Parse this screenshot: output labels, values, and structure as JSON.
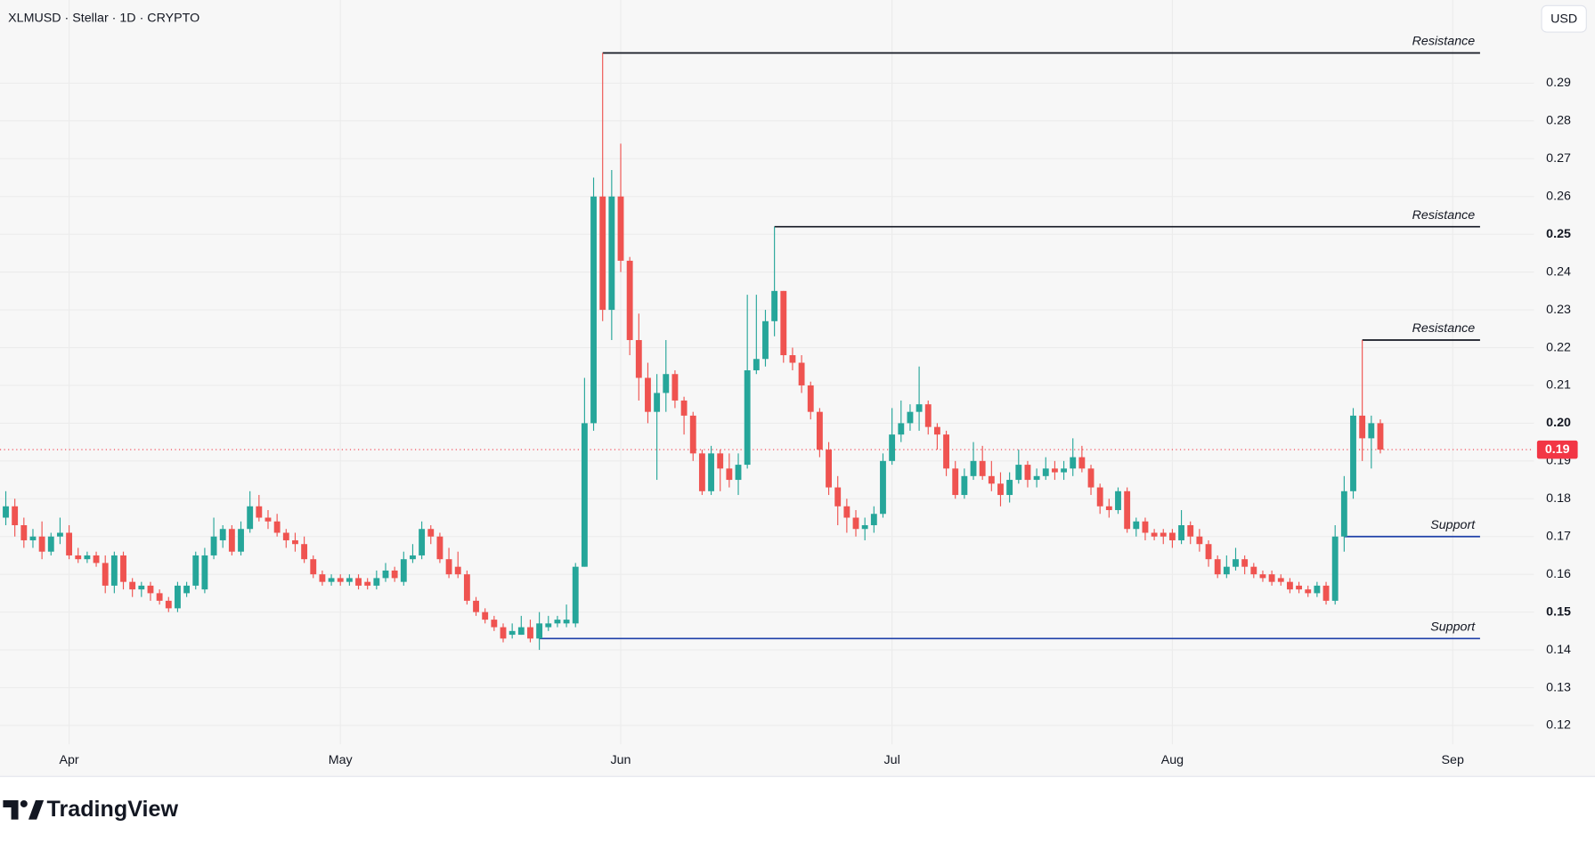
{
  "header": {
    "title": "XLMUSD · Stellar · 1D · CRYPTO",
    "currency": "USD"
  },
  "footer": {
    "brand": "TradingView"
  },
  "chart_data": {
    "type": "candlestick",
    "up_color": "#26a69a",
    "down_color": "#ef5350",
    "categories": [
      null,
      null,
      null,
      null,
      null,
      null,
      null,
      "Apr",
      null,
      null,
      null,
      null,
      null,
      null,
      null,
      null,
      null,
      null,
      null,
      null,
      null,
      null,
      null,
      null,
      null,
      null,
      null,
      null,
      null,
      null,
      null,
      null,
      null,
      null,
      null,
      null,
      null,
      "May",
      null,
      null,
      null,
      null,
      null,
      null,
      null,
      null,
      null,
      null,
      null,
      null,
      null,
      null,
      null,
      null,
      null,
      null,
      null,
      null,
      null,
      null,
      null,
      null,
      null,
      null,
      null,
      null,
      null,
      null,
      "Jun",
      null,
      null,
      null,
      null,
      null,
      null,
      null,
      null,
      null,
      null,
      null,
      null,
      null,
      null,
      null,
      null,
      null,
      null,
      null,
      null,
      null,
      null,
      null,
      null,
      null,
      null,
      null,
      null,
      null,
      "Jul",
      null,
      null,
      null,
      null,
      null,
      null,
      null,
      null,
      null,
      null,
      null,
      null,
      null,
      null,
      null,
      null,
      null,
      null,
      null,
      null,
      null,
      null,
      null,
      null,
      null,
      null,
      null,
      null,
      null,
      null,
      "Aug",
      null,
      null,
      null,
      null,
      null,
      null,
      null,
      null,
      null,
      null,
      null,
      null,
      null,
      null,
      null,
      null,
      null,
      null,
      null,
      null,
      null,
      null,
      null,
      null,
      null,
      null,
      null,
      null,
      null,
      null,
      "Sep"
    ],
    "open": [
      0.175,
      0.178,
      0.173,
      0.169,
      0.17,
      0.166,
      0.17,
      0.171,
      0.165,
      0.164,
      0.165,
      0.163,
      0.157,
      0.165,
      0.158,
      0.156,
      0.157,
      0.155,
      0.153,
      0.151,
      0.155,
      0.157,
      0.156,
      0.165,
      0.169,
      0.172,
      0.166,
      0.172,
      0.178,
      0.175,
      0.174,
      0.171,
      0.169,
      0.168,
      0.164,
      0.16,
      0.158,
      0.159,
      0.158,
      0.159,
      0.158,
      0.157,
      0.159,
      0.161,
      0.158,
      0.164,
      0.165,
      0.172,
      0.17,
      0.164,
      0.162,
      0.16,
      0.153,
      0.15,
      0.148,
      0.146,
      0.144,
      0.144,
      0.146,
      0.143,
      0.146,
      0.147,
      0.147,
      0.147,
      0.162,
      0.2,
      0.26,
      0.23,
      0.26,
      0.243,
      0.222,
      0.212,
      0.203,
      0.208,
      0.213,
      0.206,
      0.202,
      0.192,
      0.182,
      0.192,
      0.188,
      0.185,
      0.189,
      0.214,
      0.217,
      0.227,
      0.235,
      0.218,
      0.216,
      0.21,
      0.203,
      0.193,
      0.183,
      0.178,
      0.175,
      0.172,
      0.173,
      0.176,
      0.19,
      0.197,
      0.2,
      0.203,
      0.205,
      0.199,
      0.197,
      0.188,
      0.181,
      0.186,
      0.19,
      0.186,
      0.184,
      0.181,
      0.185,
      0.189,
      0.185,
      0.186,
      0.188,
      0.187,
      0.188,
      0.191,
      0.188,
      0.183,
      0.178,
      0.177,
      0.182,
      0.172,
      0.174,
      0.171,
      0.171,
      0.171,
      0.169,
      0.173,
      0.17,
      0.168,
      0.164,
      0.16,
      0.162,
      0.164,
      0.162,
      0.16,
      0.16,
      0.159,
      0.158,
      0.157,
      0.156,
      0.155,
      0.157,
      0.153,
      0.17,
      0.182,
      0.202,
      0.196,
      0.2,
      null,
      null,
      null,
      null,
      null,
      null,
      null,
      null
    ],
    "high": [
      0.182,
      0.18,
      0.175,
      0.172,
      0.174,
      0.171,
      0.175,
      0.173,
      0.167,
      0.166,
      0.166,
      0.165,
      0.166,
      0.166,
      0.159,
      0.158,
      0.158,
      0.156,
      0.154,
      0.158,
      0.158,
      0.166,
      0.167,
      0.175,
      0.173,
      0.173,
      0.174,
      0.182,
      0.181,
      0.177,
      0.176,
      0.172,
      0.171,
      0.17,
      0.165,
      0.161,
      0.16,
      0.16,
      0.16,
      0.16,
      0.159,
      0.161,
      0.163,
      0.162,
      0.166,
      0.168,
      0.174,
      0.173,
      0.171,
      0.167,
      0.166,
      0.161,
      0.154,
      0.151,
      0.149,
      0.147,
      0.147,
      0.149,
      0.148,
      0.15,
      0.149,
      0.149,
      0.152,
      0.163,
      0.212,
      0.265,
      0.298,
      0.267,
      0.274,
      0.244,
      0.229,
      0.216,
      0.213,
      0.222,
      0.214,
      0.207,
      0.203,
      0.193,
      0.194,
      0.193,
      0.192,
      0.192,
      0.234,
      0.234,
      0.23,
      0.252,
      0.235,
      0.22,
      0.218,
      0.211,
      0.204,
      0.195,
      0.186,
      0.18,
      0.177,
      0.175,
      0.178,
      0.192,
      0.204,
      0.206,
      0.205,
      0.215,
      0.206,
      0.2,
      0.198,
      0.19,
      0.188,
      0.195,
      0.194,
      0.19,
      0.187,
      0.187,
      0.193,
      0.19,
      0.188,
      0.191,
      0.19,
      0.19,
      0.196,
      0.194,
      0.189,
      0.184,
      0.18,
      0.183,
      0.183,
      0.175,
      0.175,
      0.172,
      0.172,
      0.172,
      0.177,
      0.174,
      0.172,
      0.169,
      0.165,
      0.165,
      0.167,
      0.165,
      0.163,
      0.161,
      0.161,
      0.16,
      0.159,
      0.158,
      0.157,
      0.158,
      0.158,
      0.173,
      0.186,
      0.204,
      0.222,
      0.202,
      0.201,
      null,
      null,
      null,
      null,
      null,
      null,
      null,
      null
    ],
    "low": [
      0.173,
      0.17,
      0.167,
      0.167,
      0.164,
      0.165,
      0.168,
      0.164,
      0.163,
      0.163,
      0.162,
      0.155,
      0.155,
      0.156,
      0.154,
      0.154,
      0.153,
      0.152,
      0.15,
      0.15,
      0.154,
      0.156,
      0.155,
      0.164,
      0.167,
      0.165,
      0.165,
      0.171,
      0.174,
      0.172,
      0.17,
      0.167,
      0.166,
      0.163,
      0.159,
      0.157,
      0.157,
      0.157,
      0.157,
      0.156,
      0.156,
      0.156,
      0.158,
      0.158,
      0.157,
      0.163,
      0.164,
      0.168,
      0.163,
      0.159,
      0.159,
      0.152,
      0.149,
      0.147,
      0.145,
      0.142,
      0.143,
      0.144,
      0.142,
      0.14,
      0.145,
      0.146,
      0.146,
      0.146,
      0.162,
      0.198,
      0.227,
      0.222,
      0.24,
      0.218,
      0.206,
      0.2,
      0.185,
      0.203,
      0.204,
      0.197,
      0.19,
      0.181,
      0.181,
      0.182,
      0.183,
      0.181,
      0.188,
      0.213,
      0.215,
      0.223,
      0.216,
      0.214,
      0.208,
      0.201,
      0.191,
      0.181,
      0.173,
      0.171,
      0.17,
      0.169,
      0.171,
      0.175,
      0.189,
      0.195,
      0.198,
      0.198,
      0.197,
      0.193,
      0.186,
      0.18,
      0.18,
      0.185,
      0.185,
      0.182,
      0.178,
      0.179,
      0.184,
      0.183,
      0.183,
      0.185,
      0.185,
      0.185,
      0.186,
      0.187,
      0.181,
      0.176,
      0.175,
      0.176,
      0.171,
      0.17,
      0.169,
      0.169,
      0.168,
      0.167,
      0.168,
      0.168,
      0.166,
      0.162,
      0.159,
      0.159,
      0.161,
      0.16,
      0.159,
      0.158,
      0.157,
      0.157,
      0.155,
      0.155,
      0.154,
      0.154,
      0.152,
      0.152,
      0.166,
      0.18,
      0.19,
      0.188,
      0.192,
      null,
      null,
      null,
      null,
      null,
      null,
      null,
      null
    ],
    "close": [
      0.178,
      0.173,
      0.169,
      0.17,
      0.166,
      0.17,
      0.171,
      0.165,
      0.164,
      0.165,
      0.163,
      0.157,
      0.165,
      0.158,
      0.156,
      0.157,
      0.155,
      0.153,
      0.151,
      0.157,
      0.157,
      0.165,
      0.165,
      0.17,
      0.172,
      0.166,
      0.172,
      0.178,
      0.175,
      0.174,
      0.171,
      0.169,
      0.168,
      0.164,
      0.16,
      0.158,
      0.159,
      0.158,
      0.159,
      0.157,
      0.157,
      0.159,
      0.161,
      0.159,
      0.164,
      0.165,
      0.172,
      0.17,
      0.164,
      0.16,
      0.16,
      0.153,
      0.15,
      0.148,
      0.146,
      0.143,
      0.145,
      0.146,
      0.143,
      0.147,
      0.147,
      0.148,
      0.148,
      0.162,
      0.2,
      0.26,
      0.23,
      0.26,
      0.243,
      0.222,
      0.212,
      0.203,
      0.208,
      0.213,
      0.206,
      0.202,
      0.192,
      0.182,
      0.192,
      0.188,
      0.185,
      0.189,
      0.214,
      0.217,
      0.227,
      0.235,
      0.218,
      0.216,
      0.21,
      0.203,
      0.193,
      0.183,
      0.178,
      0.175,
      0.172,
      0.173,
      0.176,
      0.19,
      0.197,
      0.2,
      0.203,
      0.205,
      0.199,
      0.197,
      0.188,
      0.181,
      0.186,
      0.19,
      0.186,
      0.184,
      0.181,
      0.185,
      0.189,
      0.185,
      0.186,
      0.188,
      0.187,
      0.188,
      0.191,
      0.188,
      0.183,
      0.178,
      0.177,
      0.182,
      0.172,
      0.174,
      0.171,
      0.17,
      0.17,
      0.169,
      0.173,
      0.17,
      0.168,
      0.164,
      0.16,
      0.162,
      0.164,
      0.162,
      0.16,
      0.159,
      0.158,
      0.158,
      0.156,
      0.156,
      0.155,
      0.157,
      0.153,
      0.17,
      0.182,
      0.202,
      0.196,
      0.2,
      0.193,
      null,
      null,
      null,
      null,
      null,
      null,
      null,
      null
    ],
    "ylim": [
      0.115,
      0.312
    ],
    "yticks": [
      0.12,
      0.13,
      0.14,
      0.15,
      0.16,
      0.17,
      0.18,
      0.19,
      {
        "value": 0.2,
        "label": "0.20"
      },
      0.21,
      0.22,
      0.23,
      0.24,
      0.25,
      0.26,
      0.27,
      0.28,
      0.29
    ],
    "grid": true,
    "last_price": {
      "value": 0.193,
      "label": "0.19",
      "color": "#f23645"
    },
    "levels": [
      {
        "label": "Resistance",
        "value": 0.298,
        "color": "#131722"
      },
      {
        "label": "Resistance",
        "value": 0.252,
        "color": "#131722"
      },
      {
        "label": "Resistance",
        "value": 0.222,
        "color": "#131722"
      },
      {
        "label": "Support",
        "value": 0.17,
        "color": "#1e3fa8"
      },
      {
        "label": "Support",
        "value": 0.143,
        "color": "#1e3fa8"
      }
    ]
  }
}
